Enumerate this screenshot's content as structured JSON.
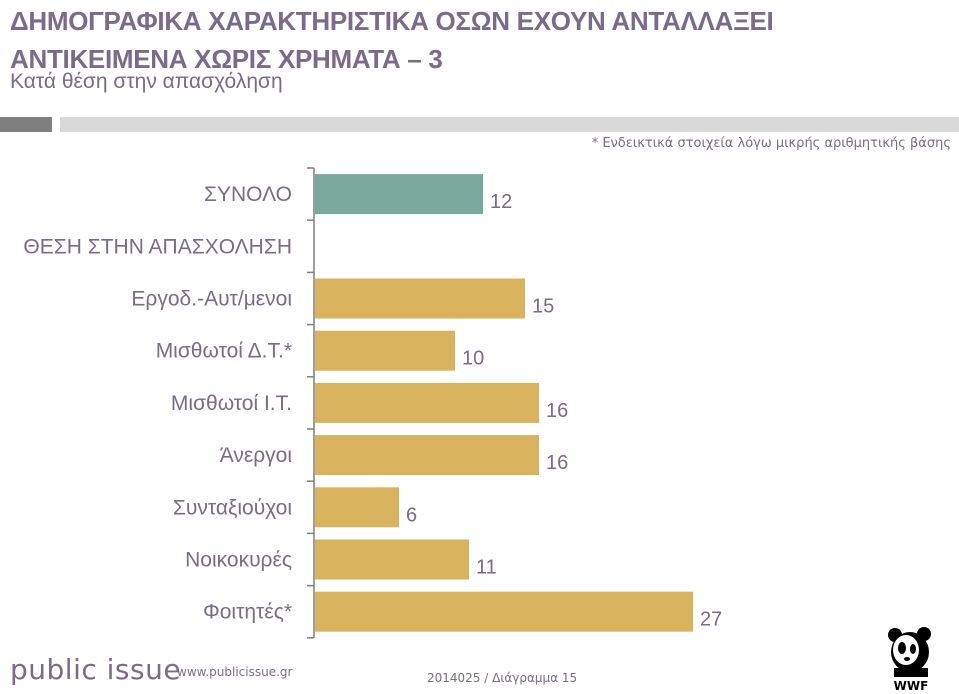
{
  "header": {
    "title_line1": "ΔΗΜΟΓΡΑΦΙΚΑ ΧΑΡΑΚΤΗΡΙΣΤΙΚΑ ΟΣΩΝ ΕΧΟΥΝ ΑΝΤΑΛΛΑΞΕΙ",
    "title_line2": "ΑΝΤΙΚΕΙΜΕΝΑ ΧΩΡΙΣ ΧΡΗΜΑΤΑ – 3",
    "subtitle": "Κατά θέση στην απασχόληση",
    "note": "* Ενδεικτικά στοιχεία λόγω μικρής αριθμητικής βάσης"
  },
  "chart_data": {
    "type": "bar",
    "orientation": "horizontal",
    "categories": [
      "ΣΥΝΟΛΟ",
      "ΘΕΣΗ ΣΤΗΝ ΑΠΑΣΧΟΛΗΣΗ",
      "Εργοδ.-Αυτ/μενοι",
      "Μισθωτοί Δ.Τ.*",
      "Μισθωτοί Ι.Τ.",
      "Άνεργοι",
      "Συνταξιούχοι",
      "Νοικοκυρές",
      "Φοιτητές*"
    ],
    "values": [
      12,
      null,
      15,
      10,
      16,
      16,
      6,
      11,
      27
    ],
    "data_labels": [
      "12",
      "",
      "15",
      "10",
      "16",
      "16",
      "6",
      "11",
      "27"
    ],
    "colors": [
      "#7ba99d",
      null,
      "#d8b25c",
      "#d8b25c",
      "#d8b25c",
      "#d8b25c",
      "#d8b25c",
      "#d8b25c",
      "#d8b25c"
    ],
    "xlim": [
      0,
      30
    ],
    "grid": false,
    "legend": "none"
  },
  "footer": {
    "logo_text": "public issue",
    "url": "www.publicissue.gr",
    "code": "2014025 / Διάγραμμα 15",
    "wwf_text": "WWF"
  },
  "colors": {
    "text": "#7a6a8c",
    "total_bar": "#7ba99d",
    "category_bar": "#d8b25c",
    "axis": "#7f7f7f"
  }
}
